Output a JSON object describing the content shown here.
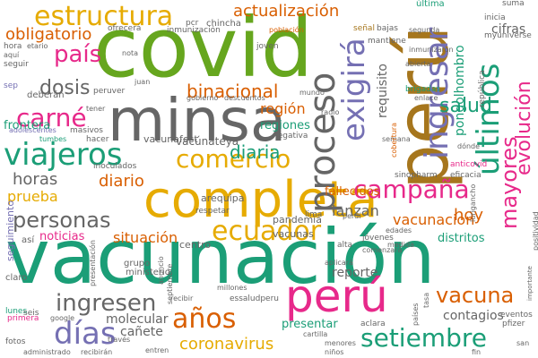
{
  "colors": {
    "teal": "#1b9e77",
    "olive": "#a6761d",
    "green": "#66a61e",
    "gray": "#666666",
    "magenta": "#e7298a",
    "orange": "#d95f02",
    "purple": "#7570b3",
    "gold": "#e6ab02"
  },
  "words": [
    {
      "text": "vacunación",
      "color": "teal"
    },
    {
      "text": "covid",
      "color": "green"
    },
    {
      "text": "perú",
      "color": "olive"
    },
    {
      "text": "minsa",
      "color": "gray"
    },
    {
      "text": "completa",
      "color": "gold"
    },
    {
      "text": "perú",
      "color": "magenta"
    },
    {
      "text": "estructura",
      "color": "gold"
    },
    {
      "text": "proceso",
      "color": "gray"
    },
    {
      "text": "ingresar",
      "color": "purple"
    },
    {
      "text": "exigirá",
      "color": "purple"
    },
    {
      "text": "viajeros",
      "color": "teal"
    },
    {
      "text": "carné",
      "color": "magenta"
    },
    {
      "text": "comercio",
      "color": "gold"
    },
    {
      "text": "campaña",
      "color": "magenta"
    },
    {
      "text": "ecuador",
      "color": "gold"
    },
    {
      "text": "setiembre",
      "color": "teal"
    },
    {
      "text": "años",
      "color": "orange"
    },
    {
      "text": "días",
      "color": "purple"
    },
    {
      "text": "mayores",
      "color": "magenta"
    },
    {
      "text": "últimos",
      "color": "teal"
    },
    {
      "text": "binacional",
      "color": "orange"
    },
    {
      "text": "actualización",
      "color": "orange"
    },
    {
      "text": "personas",
      "color": "gray"
    },
    {
      "text": "vacuna",
      "color": "orange"
    },
    {
      "text": "ingresen",
      "color": "gray"
    },
    {
      "text": "coronavirus",
      "color": "gold"
    },
    {
      "text": "dosis",
      "color": "gray"
    },
    {
      "text": "país",
      "color": "magenta"
    },
    {
      "text": "obligatorio",
      "color": "orange"
    },
    {
      "text": "salud",
      "color": "teal"
    },
    {
      "text": "horas",
      "color": "gray"
    },
    {
      "text": "diaria",
      "color": "teal"
    },
    {
      "text": "diario",
      "color": "orange"
    },
    {
      "text": "prueba",
      "color": "gold"
    },
    {
      "text": "evolución",
      "color": "magenta"
    },
    {
      "text": "hoy",
      "color": "orange"
    },
    {
      "text": "región",
      "color": "orange"
    },
    {
      "text": "requisito",
      "color": "gray"
    },
    {
      "text": "pongolhombro",
      "color": "teal"
    },
    {
      "text": "fallecidos",
      "color": "orange"
    },
    {
      "text": "situación",
      "color": "orange"
    },
    {
      "text": "lanzan",
      "color": "gray"
    },
    {
      "text": "vacunacion",
      "color": "orange"
    },
    {
      "text": "contagios",
      "color": "gray"
    },
    {
      "text": "cifras",
      "color": "gray"
    },
    {
      "text": "reporte",
      "color": "gray"
    },
    {
      "text": "molecular",
      "color": "gray"
    },
    {
      "text": "cañete",
      "color": "gray"
    },
    {
      "text": "vacúnateya",
      "color": "gray"
    },
    {
      "text": "noticias",
      "color": "magenta"
    },
    {
      "text": "vacunas",
      "color": "gray"
    },
    {
      "text": "frontera",
      "color": "teal"
    },
    {
      "text": "distritos",
      "color": "teal"
    },
    {
      "text": "presentar",
      "color": "teal"
    },
    {
      "text": "regiones",
      "color": "teal"
    },
    {
      "text": "vacunafest",
      "color": "gray"
    },
    {
      "text": "arequipa",
      "color": "gray"
    },
    {
      "text": "centro",
      "color": "gray"
    },
    {
      "text": "pandemia",
      "color": "gray"
    },
    {
      "text": "seguimiento",
      "color": "purple"
    },
    {
      "text": "última",
      "color": "teal"
    },
    {
      "text": "señal",
      "color": "olive"
    },
    {
      "text": "bajas",
      "color": "gray"
    },
    {
      "text": "chincha",
      "color": "gray"
    },
    {
      "text": "pcr",
      "color": "gray"
    },
    {
      "text": "suma",
      "color": "gray"
    },
    {
      "text": "inicia",
      "color": "gray"
    },
    {
      "text": "myuniverse",
      "color": "gray"
    },
    {
      "text": "hora",
      "color": "gray"
    },
    {
      "text": "seguir",
      "color": "gray"
    },
    {
      "text": "deberán",
      "color": "gray"
    },
    {
      "text": "ofrecerá",
      "color": "gray"
    },
    {
      "text": "inmunización",
      "color": "gray"
    },
    {
      "text": "población",
      "color": "orange"
    },
    {
      "text": "joven",
      "color": "gray"
    },
    {
      "text": "mantiene",
      "color": "gray"
    },
    {
      "text": "segunda",
      "color": "gray"
    },
    {
      "text": "inmunizaron",
      "color": "gray"
    },
    {
      "text": "abierta",
      "color": "gray"
    },
    {
      "text": "república",
      "color": "gray"
    },
    {
      "text": "brigadas",
      "color": "teal"
    },
    {
      "text": "enlace",
      "color": "gray"
    },
    {
      "text": "peruver",
      "color": "gray"
    },
    {
      "text": "juan",
      "color": "gray"
    },
    {
      "text": "nota",
      "color": "gray"
    },
    {
      "text": "gobierno",
      "color": "gray"
    },
    {
      "text": "descuentos",
      "color": "gray"
    },
    {
      "text": "mundo",
      "color": "gray"
    },
    {
      "text": "radio",
      "color": "gray"
    },
    {
      "text": "semana",
      "color": "gray"
    },
    {
      "text": "anticovid",
      "color": "magenta"
    },
    {
      "text": "eficacia",
      "color": "gray"
    },
    {
      "text": "sinopharm",
      "color": "gray"
    },
    {
      "text": "negativa",
      "color": "gray"
    },
    {
      "text": "cobertura",
      "color": "orange"
    },
    {
      "text": "adolescentes",
      "color": "purple"
    },
    {
      "text": "masivos",
      "color": "gray"
    },
    {
      "text": "hacer",
      "color": "gray"
    },
    {
      "text": "tumbes",
      "color": "teal"
    },
    {
      "text": "inoculados",
      "color": "gray"
    },
    {
      "text": "respetar",
      "color": "gray"
    },
    {
      "text": "lima",
      "color": "gray"
    },
    {
      "text": "jóvenes",
      "color": "gray"
    },
    {
      "text": "alta",
      "color": "gray"
    },
    {
      "text": "edades",
      "color": "gray"
    },
    {
      "text": "comenzará",
      "color": "gray"
    },
    {
      "text": "medida",
      "color": "gray"
    },
    {
      "text": "perdí",
      "color": "gray"
    },
    {
      "text": "así",
      "color": "gray"
    },
    {
      "text": "grupo",
      "color": "gray"
    },
    {
      "text": "anuncio",
      "color": "gray"
    },
    {
      "text": "septiembre",
      "color": "gray"
    },
    {
      "text": "aplicará",
      "color": "gray"
    },
    {
      "text": "ministerio",
      "color": "gray"
    },
    {
      "text": "presentación",
      "color": "gray"
    },
    {
      "text": "claro",
      "color": "gray"
    },
    {
      "text": "lunes",
      "color": "teal"
    },
    {
      "text": "primera",
      "color": "magenta"
    },
    {
      "text": "seis",
      "color": "gray"
    },
    {
      "text": "google",
      "color": "gray"
    },
    {
      "text": "través",
      "color": "gray"
    },
    {
      "text": "recibir",
      "color": "gray"
    },
    {
      "text": "millones",
      "color": "gray"
    },
    {
      "text": "essaludperu",
      "color": "gray"
    },
    {
      "text": "aclara",
      "color": "gray"
    },
    {
      "text": "países",
      "color": "gray"
    },
    {
      "text": "tasa",
      "color": "gray"
    },
    {
      "text": "eventos",
      "color": "gray"
    },
    {
      "text": "pfizer",
      "color": "gray"
    },
    {
      "text": "fotos",
      "color": "gray"
    },
    {
      "text": "administrado",
      "color": "gray"
    },
    {
      "text": "recibirán",
      "color": "gray"
    },
    {
      "text": "entren",
      "color": "gray"
    },
    {
      "text": "cartilla",
      "color": "gray"
    },
    {
      "text": "menores",
      "color": "gray"
    },
    {
      "text": "niños",
      "color": "gray"
    },
    {
      "text": "fin",
      "color": "gray"
    },
    {
      "text": "san",
      "color": "gray"
    },
    {
      "text": "importante",
      "color": "gray"
    },
    {
      "text": "positividad",
      "color": "gray"
    },
    {
      "text": "lurigancho",
      "color": "gray"
    },
    {
      "text": "dónde",
      "color": "gray"
    },
    {
      "text": "tener",
      "color": "gray"
    },
    {
      "text": "sep",
      "color": "purple"
    },
    {
      "text": "aquí",
      "color": "gray"
    },
    {
      "text": "etario",
      "color": "gray"
    }
  ]
}
